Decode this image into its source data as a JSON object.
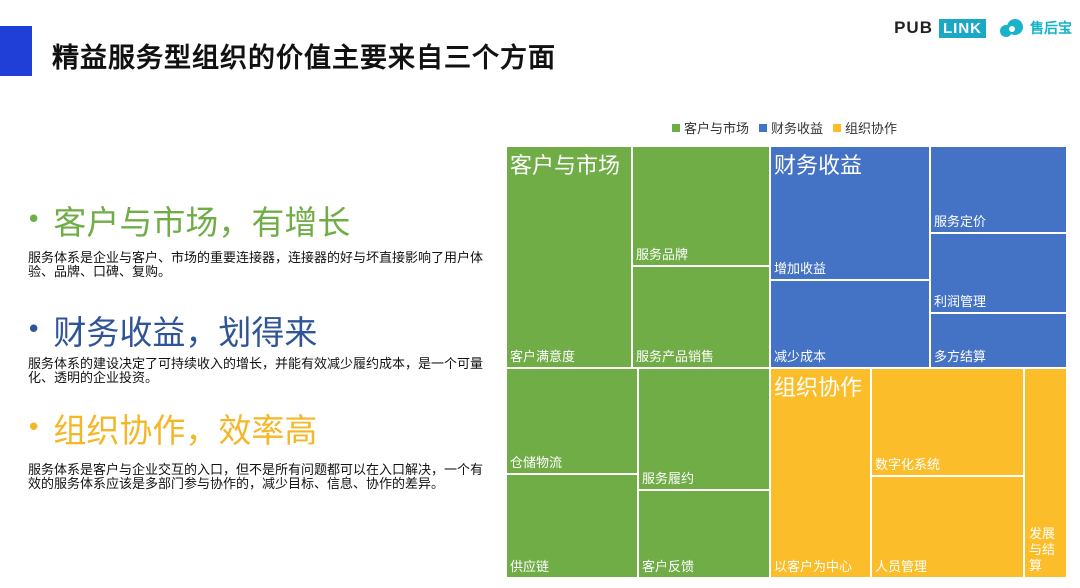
{
  "header": {
    "title": "精益服务型组织的价值主要来自三个方面",
    "logo": {
      "pub": "PUB",
      "link": "LINK",
      "name": "售后宝",
      "icon": "cloud-logo-icon"
    }
  },
  "points": [
    {
      "title": "客户与市场，有增长",
      "color": "#70ad47",
      "description": "服务体系是企业与客户、市场的重要连接器，连接器的好与坏直接影响了用户体验、品牌、口碑、复购。"
    },
    {
      "title": "财务收益，划得来",
      "color": "#2f5597",
      "description": "服务体系的建设决定了可持续收入的增长，并能有效减少履约成本，是一个可量化、透明的企业投资。"
    },
    {
      "title": "组织协作，效率高",
      "color": "#f4b728",
      "description": "服务体系是客户与企业交互的入口，但不是所有问题都可以在入口解决，一个有效的服务体系应该是多部门参与协作的，减少目标、信息、协作的差异。"
    }
  ],
  "chart_data": {
    "type": "treemap",
    "legend": [
      "客户与市场",
      "财务收益",
      "组织协作"
    ],
    "groups": [
      {
        "name": "客户与市场",
        "color": "#70ad47",
        "items": [
          {
            "name": "客户满意度",
            "value": 26
          },
          {
            "name": "服务品牌",
            "value": 16
          },
          {
            "name": "服务产品销售",
            "value": 13
          },
          {
            "name": "仓储物流",
            "value": 14
          },
          {
            "name": "服务履约",
            "value": 16
          },
          {
            "name": "供应链",
            "value": 14
          },
          {
            "name": "客户反馈",
            "value": 12
          }
        ]
      },
      {
        "name": "财务收益",
        "color": "#4472c4",
        "items": [
          {
            "name": "增加收益",
            "value": 16
          },
          {
            "name": "服务定价",
            "value": 10
          },
          {
            "name": "减少成本",
            "value": 11
          },
          {
            "name": "利润管理",
            "value": 9
          },
          {
            "name": "多方结算",
            "value": 6
          }
        ]
      },
      {
        "name": "组织协作",
        "color": "#fbbe2a",
        "items": [
          {
            "name": "以客户为中心",
            "value": 21
          },
          {
            "name": "数字化系统",
            "value": 22
          },
          {
            "name": "人员管理",
            "value": 15
          },
          {
            "name": "发展与结算",
            "value": 8
          }
        ]
      }
    ],
    "item_labels": {
      "发展与结算": "发展\n与结\n算"
    }
  }
}
